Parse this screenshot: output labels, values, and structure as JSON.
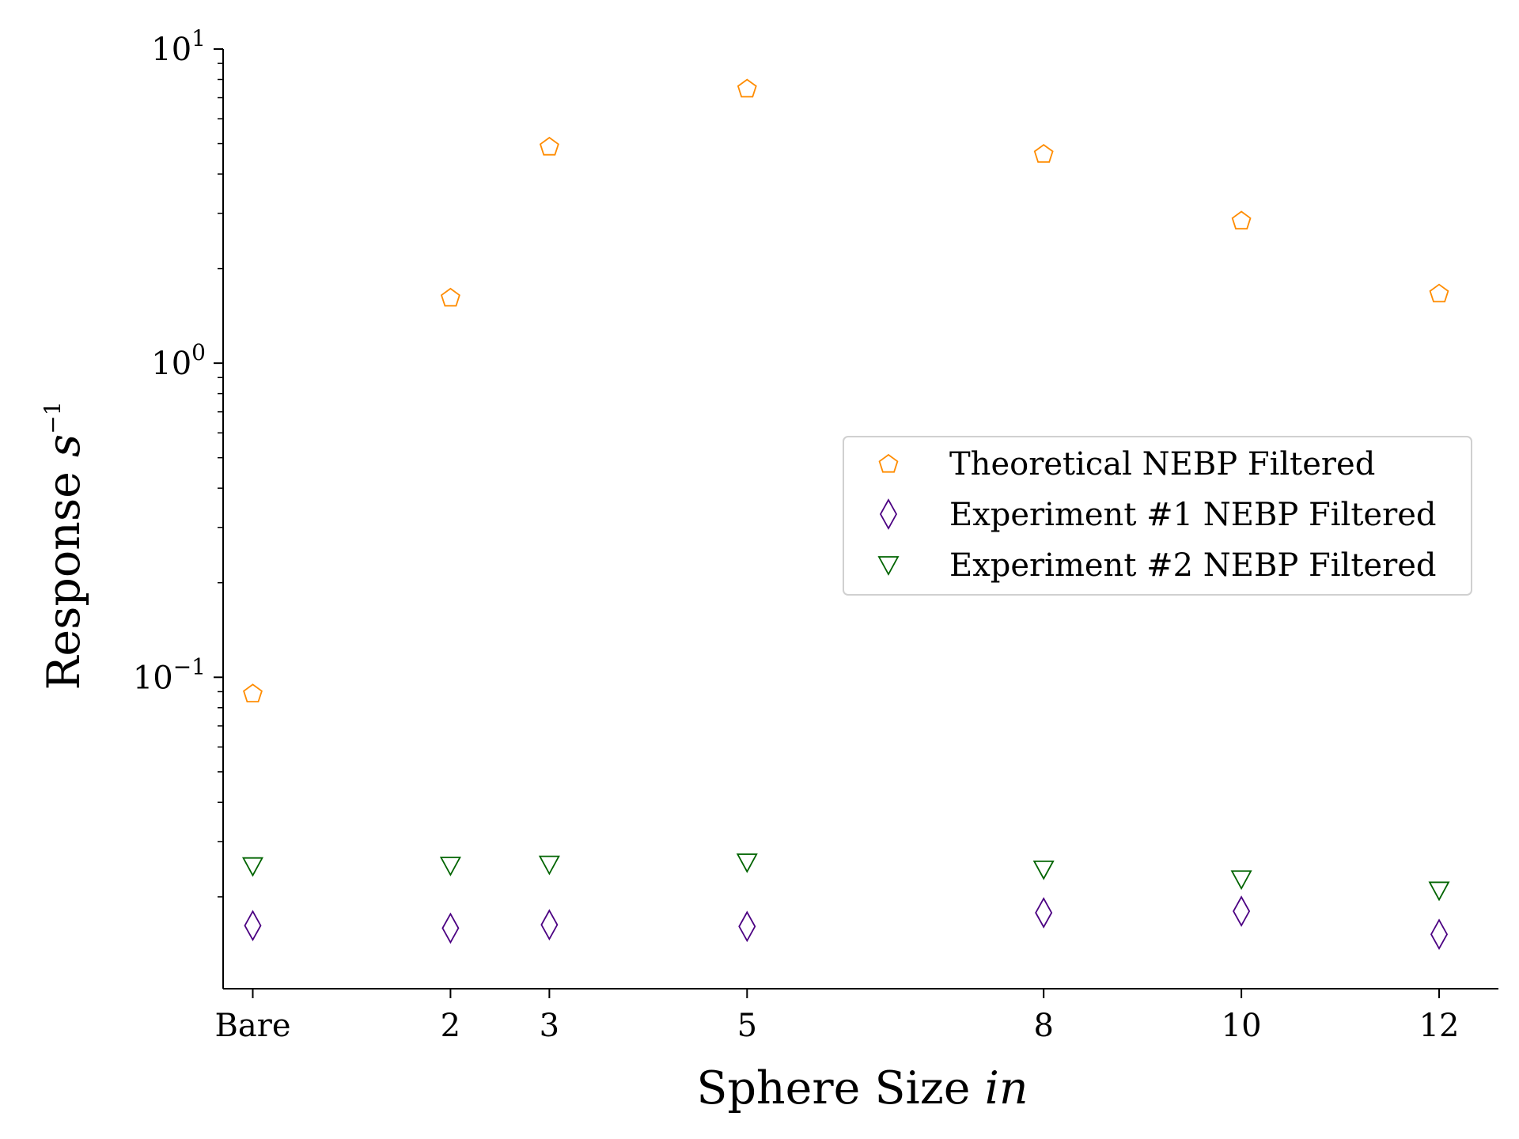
{
  "chart_data": {
    "type": "scatter",
    "xlabel": {
      "text": "Sphere Size ",
      "italic": "in"
    },
    "ylabel": {
      "text": "Response ",
      "italic": "s",
      "sup": "−1"
    },
    "y_scale": "log",
    "ylim": [
      0.0102,
      10
    ],
    "xlim": [
      -0.3,
      12.6
    ],
    "grid": false,
    "legend_placement": "center-right",
    "x_ticks": [
      {
        "value": 0,
        "label": "Bare"
      },
      {
        "value": 2,
        "label": "2"
      },
      {
        "value": 3,
        "label": "3"
      },
      {
        "value": 5,
        "label": "5"
      },
      {
        "value": 8,
        "label": "8"
      },
      {
        "value": 10,
        "label": "10"
      },
      {
        "value": 12,
        "label": "12"
      }
    ],
    "y_ticks": [
      {
        "value": 10,
        "base": "10",
        "exp": "1"
      },
      {
        "value": 1,
        "base": "10",
        "exp": "0"
      },
      {
        "value": 0.1,
        "base": "10",
        "exp": "−1"
      }
    ],
    "x": [
      0,
      2,
      3,
      5,
      8,
      10,
      12
    ],
    "series": [
      {
        "name": "Theoretical NEBP Filtered",
        "marker": "pentagon",
        "color": "#ff8c00",
        "values": [
          0.089,
          1.62,
          4.9,
          7.5,
          4.65,
          2.85,
          1.67
        ]
      },
      {
        "name": "Experiment #1 NEBP Filtered",
        "marker": "diamond",
        "color": "#4b0082",
        "values": [
          0.0162,
          0.0159,
          0.0163,
          0.0161,
          0.0178,
          0.018,
          0.0152
        ]
      },
      {
        "name": "Experiment #2 NEBP Filtered",
        "marker": "triangle-down",
        "color": "#006400",
        "values": [
          0.0251,
          0.0252,
          0.0254,
          0.0258,
          0.0245,
          0.0228,
          0.021
        ]
      }
    ]
  }
}
